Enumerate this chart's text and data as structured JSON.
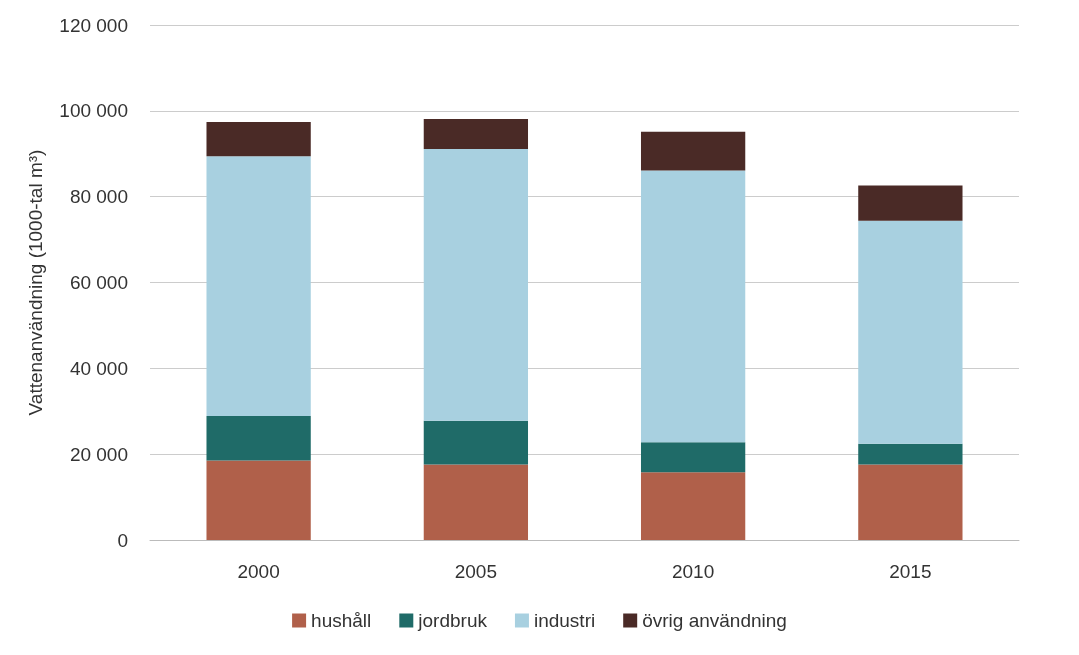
{
  "chart_data": {
    "type": "bar",
    "stacked": true,
    "ylabel": "Vattenanvändning (1000-tal m³)",
    "categories": [
      "2000",
      "2005",
      "2010",
      "2015"
    ],
    "series": [
      {
        "name": "hushåll",
        "color": "#b0604a",
        "values": [
          18500,
          17600,
          15800,
          17600
        ]
      },
      {
        "name": "jordbruk",
        "color": "#1f6b68",
        "values": [
          10400,
          10200,
          7000,
          4800
        ]
      },
      {
        "name": "industri",
        "color": "#a8d0e0",
        "values": [
          60500,
          63300,
          63300,
          52000
        ]
      },
      {
        "name": "övrig användning",
        "color": "#4a2a26",
        "values": [
          8000,
          7000,
          9000,
          8200
        ]
      }
    ],
    "ylim": [
      0,
      120000
    ],
    "yticks": [
      0,
      {
        "value": 20000,
        "label": "20 000"
      },
      {
        "value": 40000,
        "label": "40 000"
      },
      {
        "value": 60000,
        "label": "60 000"
      },
      {
        "value": 80000,
        "label": "80 000"
      },
      {
        "value": 100000,
        "label": "100 000"
      },
      {
        "value": 120000,
        "label": "120 000"
      }
    ],
    "grid": "y",
    "legend": "bottom"
  }
}
